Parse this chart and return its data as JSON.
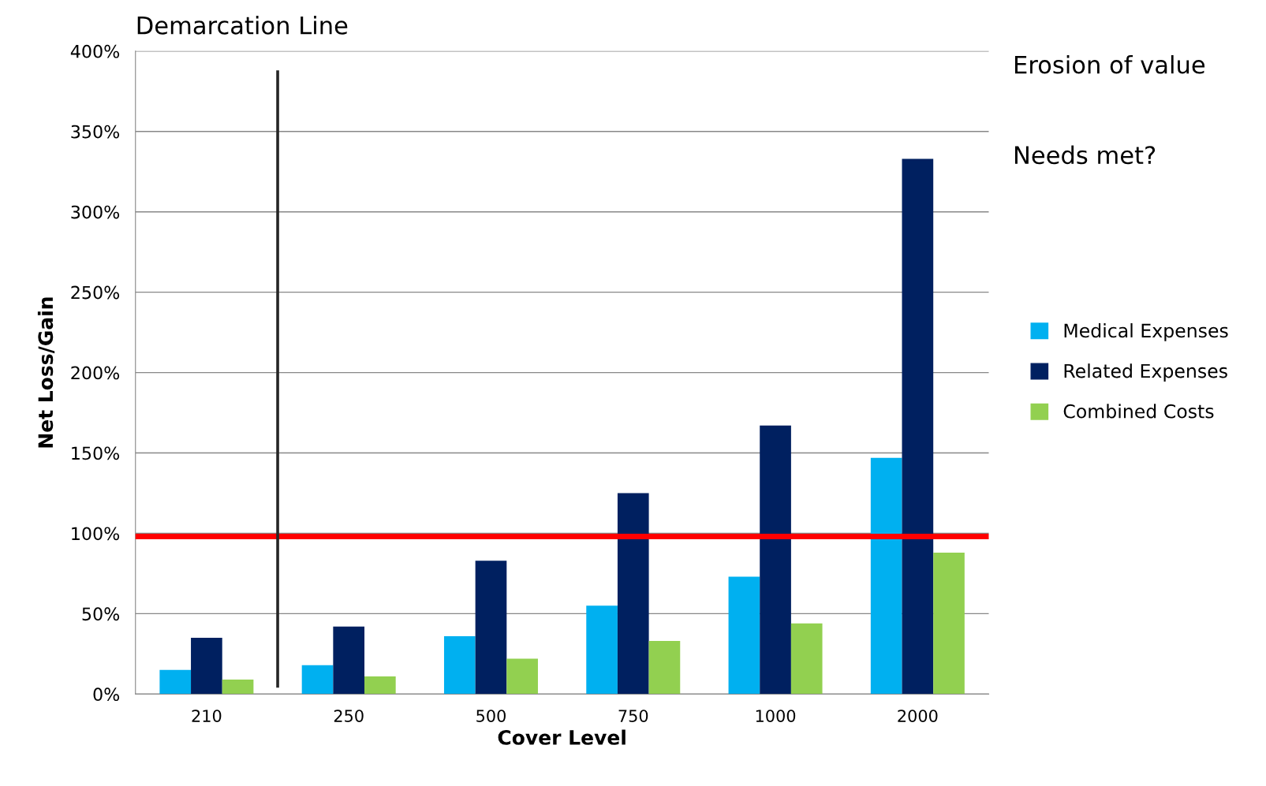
{
  "chart_data": {
    "type": "bar",
    "title": "Demarcation Line",
    "xlabel": "Cover Level",
    "ylabel": "Net Loss/Gain",
    "categories": [
      "210",
      "250",
      "500",
      "750",
      "1000",
      "2000"
    ],
    "series": [
      {
        "name": "Medical Expenses",
        "color": "#00b0f0",
        "values": [
          15,
          18,
          36,
          55,
          73,
          147
        ]
      },
      {
        "name": "Related Expenses",
        "color": "#002060",
        "values": [
          35,
          42,
          83,
          125,
          167,
          333
        ]
      },
      {
        "name": "Combined Costs",
        "color": "#92d050",
        "values": [
          9,
          11,
          22,
          33,
          44,
          88
        ]
      }
    ],
    "ylim": [
      0,
      400
    ],
    "yticks": [
      {
        "value": 0,
        "label": "0%"
      },
      {
        "value": 50,
        "label": "50%"
      },
      {
        "value": 100,
        "label": "100%"
      },
      {
        "value": 150,
        "label": "150%"
      },
      {
        "value": 200,
        "label": "200%"
      },
      {
        "value": 250,
        "label": "250%"
      },
      {
        "value": 300,
        "label": "300%"
      },
      {
        "value": 350,
        "label": "350%"
      },
      {
        "value": 400,
        "label": "400%"
      }
    ],
    "ref_lines": [
      {
        "axis": "y",
        "value": 98,
        "color": "#ff0000"
      }
    ],
    "annotations": [
      "Erosion of value",
      "Needs met?"
    ],
    "grid": "y",
    "legend": "right"
  }
}
